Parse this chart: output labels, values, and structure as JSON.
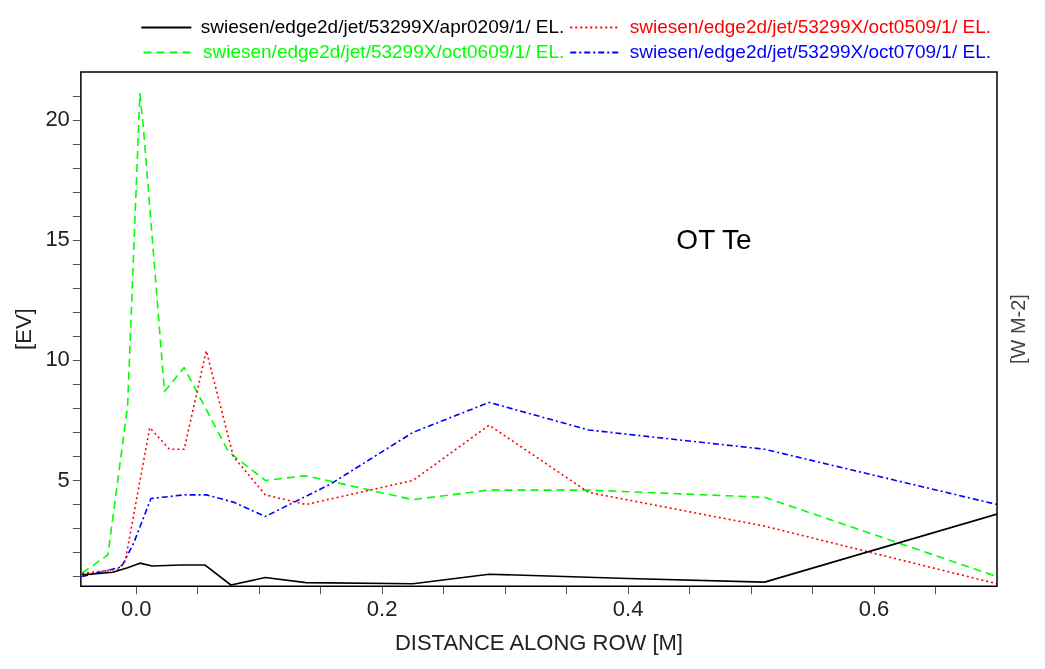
{
  "chart_data": {
    "type": "line",
    "xlabel": "DISTANCE ALONG ROW [M]",
    "ylabel": "[EV]",
    "y2label": "[W M-2]",
    "annotations": [
      "OT Te"
    ],
    "legend": "top right",
    "xlim": [
      -0.045,
      0.7
    ],
    "ylim": [
      0.6,
      22
    ],
    "xticks": [
      {
        "value": 0,
        "label": "0.0"
      },
      {
        "value": 0.05,
        "label": null
      },
      {
        "value": 0.1,
        "label": null
      },
      {
        "value": 0.15,
        "label": null
      },
      0.2,
      {
        "value": 0.25,
        "label": null
      },
      {
        "value": 0.3,
        "label": null
      },
      {
        "value": 0.35,
        "label": null
      },
      0.4,
      {
        "value": 0.45,
        "label": null
      },
      {
        "value": 0.5,
        "label": null
      },
      {
        "value": 0.55,
        "label": null
      },
      0.6,
      {
        "value": 0.65,
        "label": null
      }
    ],
    "yticks": [
      {
        "value": 1,
        "label": null
      },
      {
        "value": 2,
        "label": null
      },
      {
        "value": 3,
        "label": null
      },
      {
        "value": 4,
        "label": null
      },
      5,
      {
        "value": 6,
        "label": null
      },
      {
        "value": 7,
        "label": null
      },
      {
        "value": 8,
        "label": null
      },
      {
        "value": 9,
        "label": null
      },
      10,
      {
        "value": 11,
        "label": null
      },
      {
        "value": 12,
        "label": null
      },
      {
        "value": 13,
        "label": null
      },
      {
        "value": 14,
        "label": null
      },
      15,
      {
        "value": 16,
        "label": null
      },
      {
        "value": 17,
        "label": null
      },
      {
        "value": 18,
        "label": null
      },
      {
        "value": 19,
        "label": null
      },
      20,
      {
        "value": 21,
        "label": null
      }
    ],
    "series": [
      {
        "name": "swiesen/edge2d/jet/53299X/apr0209/1/ EL.",
        "color": "#000000",
        "line_style": "solid",
        "x": [
          -0.044,
          -0.019,
          -0.007,
          0.003,
          0.013,
          0.036,
          0.056,
          0.077,
          0.105,
          0.138,
          0.225,
          0.287,
          0.4,
          0.511,
          0.7
        ],
        "values": [
          1.07,
          1.18,
          1.37,
          1.56,
          1.44,
          1.48,
          1.48,
          0.65,
          0.96,
          0.75,
          0.7,
          1.1,
          0.92,
          0.77,
          3.6
        ]
      },
      {
        "name": "swiesen/edge2d/jet/53299X/oct0509/1/ EL.",
        "color": "#ff0000",
        "line_style": "dotted",
        "x": [
          -0.044,
          -0.015,
          -0.009,
          0.011,
          0.027,
          0.039,
          0.057,
          0.079,
          0.105,
          0.138,
          0.225,
          0.287,
          0.368,
          0.511,
          0.7
        ],
        "values": [
          1.13,
          1.3,
          1.63,
          7.2,
          6.3,
          6.3,
          10.4,
          6.0,
          4.4,
          4.0,
          5.0,
          7.3,
          4.5,
          3.1,
          0.7
        ]
      },
      {
        "name": "swiesen/edge2d/jet/53299X/oct0609/1/ EL.",
        "color": "#00ff00",
        "line_style": "dashed",
        "x": [
          -0.044,
          -0.023,
          -0.007,
          0.003,
          0.006,
          0.023,
          0.039,
          0.075,
          0.105,
          0.138,
          0.225,
          0.287,
          0.368,
          0.511,
          0.7
        ],
        "values": [
          1.15,
          1.9,
          8.1,
          21.1,
          19.6,
          8.7,
          9.7,
          6.2,
          5.0,
          5.2,
          4.2,
          4.6,
          4.6,
          4.3,
          1.0
        ]
      },
      {
        "name": "swiesen/edge2d/jet/53299X/oct0709/1/ EL.",
        "color": "#0000ff",
        "line_style": "dashdot",
        "x": [
          -0.044,
          -0.012,
          -0.002,
          0.012,
          0.039,
          0.057,
          0.079,
          0.105,
          0.158,
          0.225,
          0.287,
          0.368,
          0.511,
          0.7
        ],
        "values": [
          1.0,
          1.4,
          2.4,
          4.25,
          4.4,
          4.4,
          4.1,
          3.5,
          4.85,
          7.0,
          8.25,
          7.1,
          6.3,
          4.0
        ]
      }
    ]
  }
}
